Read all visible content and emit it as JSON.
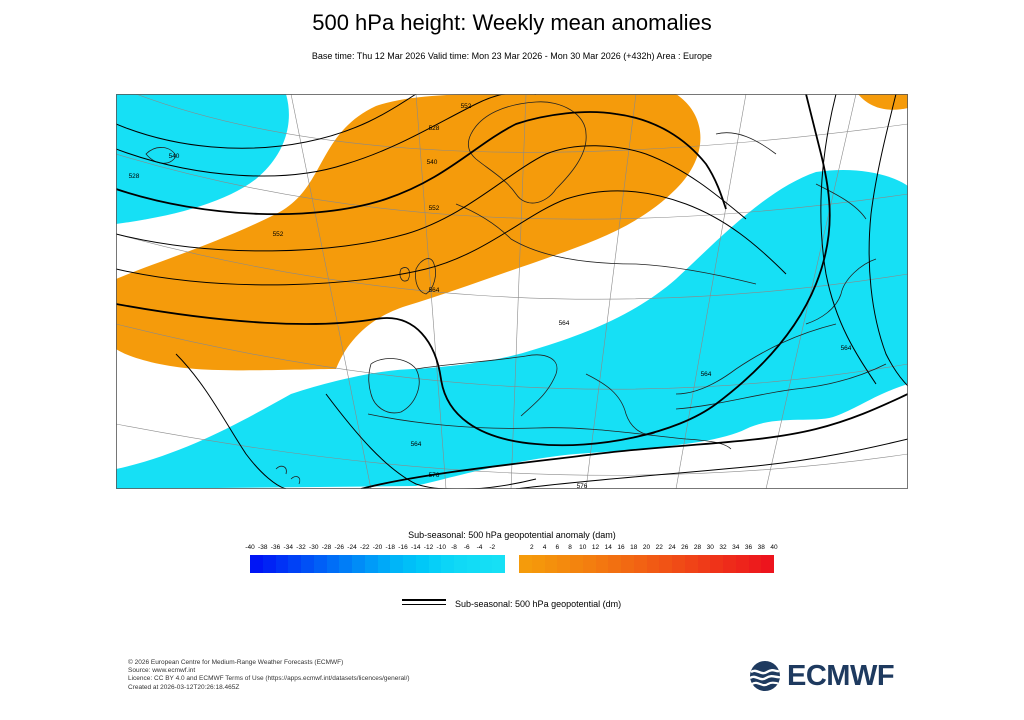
{
  "title": "500 hPa height: Weekly mean anomalies",
  "subtitle": "Base time: Thu 12 Mar 2026 Valid time: Mon 23 Mar 2026 - Mon 30 Mar 2026 (+432h) Area : Europe",
  "map": {
    "contour_labels": [
      "528",
      "540",
      "552",
      "564",
      "576"
    ],
    "colors": {
      "positive_anomaly": "#f59b0b",
      "negative_anomaly": "#14d2f5",
      "contour": "#000000",
      "coast": "#222222"
    }
  },
  "colorbar": {
    "title": "Sub-seasonal: 500 hPa geopotential anomaly (dam)",
    "negative_labels": [
      "-40",
      "-38",
      "-36",
      "-34",
      "-32",
      "-30",
      "-28",
      "-26",
      "-24",
      "-22",
      "-20",
      "-18",
      "-16",
      "-14",
      "-12",
      "-10",
      "-8",
      "-6",
      "-4",
      "-2"
    ],
    "positive_labels": [
      "2",
      "4",
      "6",
      "8",
      "10",
      "12",
      "14",
      "16",
      "18",
      "20",
      "22",
      "24",
      "26",
      "28",
      "30",
      "32",
      "34",
      "36",
      "38",
      "40"
    ],
    "negative_colors": [
      "#0015f5",
      "#0023f5",
      "#0032f6",
      "#0041f6",
      "#0050f6",
      "#005ff7",
      "#006ef7",
      "#007df7",
      "#008cf7",
      "#009bf8",
      "#00a9f8",
      "#00b5f8",
      "#00bff8",
      "#00c8f8",
      "#06cff8",
      "#0bd5f7",
      "#10d9f6",
      "#12dcf6",
      "#14def5",
      "#16e0f5"
    ],
    "positive_colors": [
      "#f59b0b",
      "#f5960b",
      "#f4900c",
      "#f48a0d",
      "#f3840e",
      "#f37e0f",
      "#f37710",
      "#f27011",
      "#f26912",
      "#f26213",
      "#f15a14",
      "#f15315",
      "#f04b16",
      "#f04317",
      "#ef3b18",
      "#ef3319",
      "#ee2b1a",
      "#ee241b",
      "#ed1c1c",
      "#ed141d"
    ]
  },
  "legend": {
    "label": "Sub-seasonal: 500 hPa geopotential (dm)"
  },
  "credits": [
    "© 2026 European Centre for Medium-Range Weather Forecasts (ECMWF)",
    "Source: www.ecmwf.int",
    "Licence: CC BY 4.0 and ECMWF Terms of Use (https://apps.ecmwf.int/datasets/licences/general/)",
    "Created at 2026-03-12T20:26:18.465Z"
  ],
  "logo": {
    "text": "ECMWF",
    "color": "#1e3a5f"
  }
}
